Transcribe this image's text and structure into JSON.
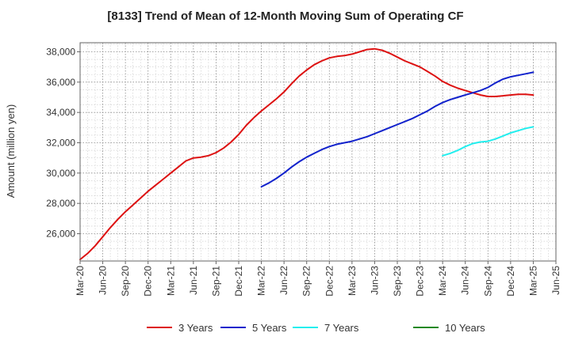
{
  "chart_data": {
    "type": "line",
    "title": "[8133]  Trend of Mean of 12-Month Moving Sum of Operating CF",
    "xlabel": "",
    "ylabel": "Amount (million yen)",
    "ylim": [
      24200,
      38600
    ],
    "yticks": [
      26000,
      28000,
      30000,
      32000,
      34000,
      36000,
      38000
    ],
    "ytick_labels": [
      "26,000",
      "28,000",
      "30,000",
      "32,000",
      "34,000",
      "36,000",
      "38,000"
    ],
    "xticks": [
      "Mar-20",
      "Jun-20",
      "Sep-20",
      "Dec-20",
      "Mar-21",
      "Jun-21",
      "Sep-21",
      "Dec-21",
      "Mar-22",
      "Jun-22",
      "Sep-22",
      "Dec-22",
      "Mar-23",
      "Jun-23",
      "Sep-23",
      "Dec-23",
      "Mar-24",
      "Jun-24",
      "Sep-24",
      "Dec-24",
      "Mar-25",
      "Jun-25"
    ],
    "x_unit": "months since Mar-20",
    "xlim": [
      0,
      63
    ],
    "grid": true,
    "legend_position": "bottom",
    "series": [
      {
        "name": "3 Years",
        "color": "#dd1111",
        "x": [
          0,
          1,
          2,
          3,
          4,
          5,
          6,
          7,
          8,
          9,
          10,
          11,
          12,
          13,
          14,
          15,
          16,
          17,
          18,
          19,
          20,
          21,
          22,
          23,
          24,
          25,
          26,
          27,
          28,
          29,
          30,
          31,
          32,
          33,
          34,
          35,
          36,
          37,
          38,
          39,
          40,
          41,
          42,
          43,
          44,
          45,
          46,
          47,
          48,
          49,
          50,
          51,
          52,
          53,
          54,
          55,
          56,
          57,
          58,
          59,
          60
        ],
        "values": [
          24300,
          24700,
          25200,
          25800,
          26400,
          26950,
          27450,
          27900,
          28350,
          28800,
          29200,
          29600,
          30000,
          30400,
          30800,
          31000,
          31050,
          31150,
          31350,
          31650,
          32050,
          32550,
          33150,
          33650,
          34100,
          34500,
          34900,
          35350,
          35900,
          36400,
          36800,
          37150,
          37400,
          37600,
          37700,
          37750,
          37850,
          38000,
          38150,
          38200,
          38100,
          37900,
          37650,
          37400,
          37200,
          37000,
          36700,
          36400,
          36050,
          35800,
          35600,
          35450,
          35300,
          35150,
          35050,
          35050,
          35100,
          35150,
          35200,
          35200,
          35150
        ]
      },
      {
        "name": "5 Years",
        "color": "#1122cc",
        "x": [
          24,
          25,
          26,
          27,
          28,
          29,
          30,
          31,
          32,
          33,
          34,
          35,
          36,
          37,
          38,
          39,
          40,
          41,
          42,
          43,
          44,
          45,
          46,
          47,
          48,
          49,
          50,
          51,
          52,
          53,
          54,
          55,
          56,
          57,
          58,
          59,
          60
        ],
        "values": [
          29100,
          29350,
          29650,
          30000,
          30400,
          30750,
          31050,
          31300,
          31550,
          31750,
          31900,
          32000,
          32100,
          32250,
          32400,
          32600,
          32800,
          33000,
          33200,
          33400,
          33600,
          33850,
          34100,
          34400,
          34650,
          34850,
          35000,
          35150,
          35300,
          35450,
          35650,
          35950,
          36200,
          36350,
          36450,
          36550,
          36650
        ]
      },
      {
        "name": "7 Years",
        "color": "#22eeee",
        "x": [
          48,
          49,
          50,
          51,
          52,
          53,
          54,
          55,
          56,
          57,
          58,
          59,
          60
        ],
        "values": [
          31150,
          31300,
          31500,
          31750,
          31950,
          32050,
          32100,
          32250,
          32450,
          32650,
          32800,
          32950,
          33050
        ]
      },
      {
        "name": "10 Years",
        "color": "#228822",
        "x": [],
        "values": []
      }
    ]
  }
}
